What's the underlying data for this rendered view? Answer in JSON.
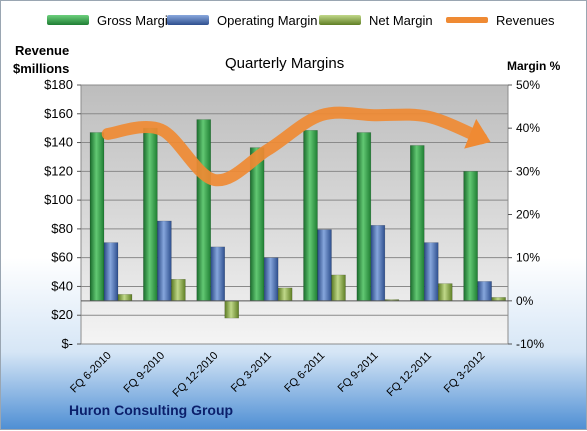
{
  "chart_data": {
    "type": "bar",
    "title": "Quarterly Margins",
    "left_axis_label_line1": "Revenue",
    "left_axis_label_line2": "$millions",
    "right_axis_label": "Margin %",
    "footer": "Huron Consulting Group",
    "categories": [
      "FQ 6-2010",
      "FQ 9-2010",
      "FQ 12-2010",
      "FQ 3-2011",
      "FQ 6-2011",
      "FQ 9-2011",
      "FQ 12-2011",
      "FQ 3-2012"
    ],
    "left_axis": {
      "ylim": [
        0,
        180
      ],
      "ticks": [
        0,
        20,
        40,
        60,
        80,
        100,
        120,
        140,
        160,
        180
      ],
      "tick_labels": [
        "$-",
        "$20",
        "$40",
        "$60",
        "$80",
        "$100",
        "$120",
        "$140",
        "$160",
        "$180"
      ]
    },
    "right_axis": {
      "ylim": [
        -10,
        50
      ],
      "ticks": [
        -10,
        0,
        10,
        20,
        30,
        40,
        50
      ],
      "tick_labels": [
        "-10%",
        "0%",
        "10%",
        "20%",
        "30%",
        "40%",
        "50%"
      ]
    },
    "series": [
      {
        "name": "Gross Margin",
        "axis": "right",
        "kind": "bar",
        "color": "#2e9d43",
        "values": [
          39,
          40,
          42,
          35.5,
          39.5,
          39,
          36,
          30
        ]
      },
      {
        "name": "Operating Margin",
        "axis": "right",
        "kind": "bar",
        "color": "#4f76b8",
        "values": [
          13.5,
          18.5,
          12.5,
          10,
          16.5,
          17.5,
          13.5,
          4.5
        ]
      },
      {
        "name": "Net Margin",
        "axis": "right",
        "kind": "bar",
        "color": "#8fae3c",
        "values": [
          1.5,
          5,
          -4,
          3,
          6,
          0.3,
          4,
          0.8
        ]
      },
      {
        "name": "Revenues",
        "axis": "left",
        "kind": "line",
        "color": "#ef8a33",
        "values": [
          146,
          149,
          114,
          135,
          159,
          159,
          158,
          143
        ]
      }
    ],
    "grid": true,
    "legend": "top"
  }
}
